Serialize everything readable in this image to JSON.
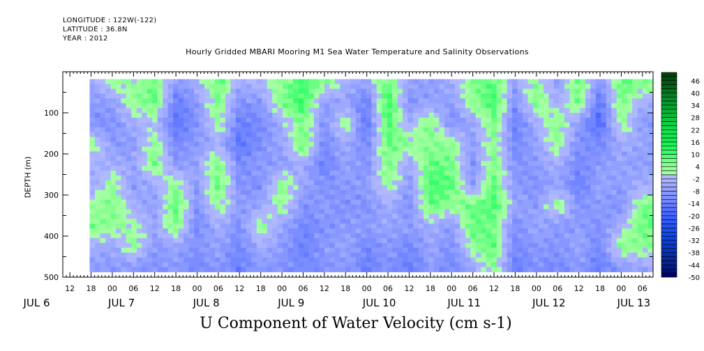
{
  "header": {
    "longitude": "LONGITUDE : 122W(-122)",
    "latitude": "LATITUDE : 36.8N",
    "year": "YEAR : 2012"
  },
  "chart_data": {
    "type": "heatmap",
    "title": "Hourly Gridded MBARI Mooring M1 Sea Water Temperature and Salinity Observations",
    "xlabel": "",
    "ylabel": "DEPTH (m)",
    "variable_label": "U Component of Water Velocity (cm s-1)",
    "x_hour_ticks": [
      "12",
      "18",
      "00",
      "06",
      "12",
      "18",
      "00",
      "06",
      "12",
      "18",
      "00",
      "06",
      "12",
      "18",
      "00",
      "06",
      "12",
      "18",
      "00",
      "06",
      "12",
      "18",
      "00",
      "06",
      "12",
      "18",
      "00",
      "06"
    ],
    "x_day_labels": [
      {
        "label": "JUL  6",
        "hour": 0
      },
      {
        "label": "JUL  7",
        "hour": 24
      },
      {
        "label": "JUL  8",
        "hour": 48
      },
      {
        "label": "JUL  9",
        "hour": 72
      },
      {
        "label": "JUL 10",
        "hour": 96
      },
      {
        "label": "JUL 11",
        "hour": 120
      },
      {
        "label": "JUL 12",
        "hour": 144
      },
      {
        "label": "JUL 13",
        "hour": 168
      }
    ],
    "xlim_hours_from_jul6": [
      10,
      177
    ],
    "y_ticks": [
      "100",
      "200",
      "300",
      "400",
      "500"
    ],
    "ylim": [
      0,
      500
    ],
    "y_reversed": true,
    "colorbar": {
      "min": -50,
      "max": 50,
      "step": 2,
      "labels": [
        "46",
        "40",
        "34",
        "28",
        "22",
        "16",
        "10",
        "4",
        "-2",
        "-8",
        "-14",
        "-20",
        "-26",
        "-32",
        "-38",
        "-44",
        "-50"
      ]
    },
    "time_hours_from_jul6": [
      18,
      24,
      30,
      36,
      42,
      48,
      54,
      60,
      66,
      72,
      78,
      84,
      90,
      96,
      102,
      108,
      114,
      120,
      126,
      132,
      138,
      144,
      150,
      156,
      162,
      168,
      174
    ],
    "depths": [
      25,
      75,
      125,
      175,
      225,
      275,
      325,
      375,
      425,
      475
    ],
    "values": [
      [
        -6,
        -8,
        -10,
        4,
        -4,
        -6,
        2,
        6,
        -4,
        -8
      ],
      [
        4,
        -8,
        -10,
        -8,
        -4,
        4,
        6,
        4,
        -6,
        -8
      ],
      [
        2,
        4,
        -4,
        -8,
        -6,
        -8,
        -4,
        2,
        4,
        -8
      ],
      [
        6,
        8,
        -2,
        4,
        6,
        -4,
        -8,
        -6,
        -8,
        -10
      ],
      [
        -8,
        -14,
        -16,
        -12,
        -8,
        4,
        8,
        6,
        -6,
        -8
      ],
      [
        -4,
        -8,
        -10,
        -8,
        -6,
        -8,
        -10,
        -12,
        -10,
        -12
      ],
      [
        8,
        6,
        4,
        -4,
        6,
        8,
        4,
        -4,
        -6,
        -8
      ],
      [
        -4,
        -10,
        -14,
        -16,
        -12,
        -10,
        -8,
        -10,
        -12,
        -14
      ],
      [
        -2,
        -8,
        -12,
        -10,
        -8,
        -10,
        -6,
        4,
        -4,
        -8
      ],
      [
        4,
        6,
        -4,
        -6,
        -8,
        6,
        4,
        -6,
        -8,
        -10
      ],
      [
        10,
        12,
        6,
        8,
        -4,
        -6,
        -10,
        -12,
        -14,
        -12
      ],
      [
        6,
        -8,
        -10,
        -12,
        -14,
        -10,
        -8,
        -10,
        -8,
        -10
      ],
      [
        -4,
        -6,
        4,
        -4,
        -6,
        -8,
        -10,
        -8,
        -6,
        -8
      ],
      [
        -6,
        -14,
        -16,
        -12,
        -10,
        -8,
        -10,
        -8,
        -12,
        -14
      ],
      [
        8,
        12,
        10,
        8,
        6,
        4,
        -4,
        -6,
        -8,
        -10
      ],
      [
        -6,
        -10,
        -4,
        4,
        -6,
        -8,
        -10,
        -8,
        -12,
        -14
      ],
      [
        -8,
        -6,
        6,
        4,
        8,
        10,
        8,
        -4,
        -6,
        -8
      ],
      [
        -4,
        -8,
        -10,
        4,
        6,
        8,
        4,
        -8,
        -10,
        -12
      ],
      [
        6,
        4,
        -6,
        -8,
        -10,
        -8,
        6,
        8,
        4,
        -6
      ],
      [
        8,
        10,
        6,
        4,
        6,
        8,
        10,
        6,
        8,
        4
      ],
      [
        -6,
        -10,
        -14,
        -12,
        -10,
        -8,
        -6,
        -10,
        -12,
        -14
      ],
      [
        4,
        6,
        -4,
        -6,
        -8,
        -10,
        -8,
        -6,
        -8,
        -10
      ],
      [
        -8,
        -4,
        6,
        4,
        -4,
        -6,
        4,
        -8,
        -10,
        -12
      ],
      [
        8,
        6,
        -8,
        -10,
        -12,
        -14,
        -10,
        -8,
        -6,
        -8
      ],
      [
        -10,
        -16,
        -18,
        -12,
        -8,
        -6,
        -8,
        -10,
        -12,
        -14
      ],
      [
        8,
        6,
        4,
        -4,
        -6,
        -8,
        -10,
        -4,
        6,
        -8
      ],
      [
        6,
        -4,
        -8,
        -6,
        -8,
        -4,
        6,
        8,
        4,
        -6
      ]
    ]
  }
}
